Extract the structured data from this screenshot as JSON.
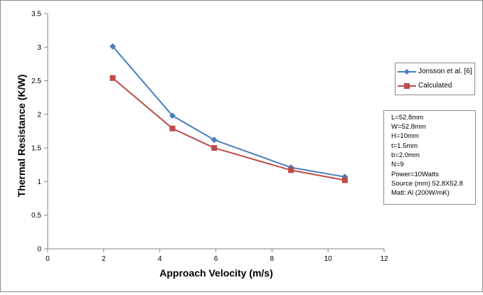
{
  "chart_data": {
    "type": "line",
    "title": "",
    "xlabel": "Approach Velocity (m/s)",
    "ylabel": "Thermal Resistance (K/W)",
    "xlim": [
      0,
      12
    ],
    "ylim": [
      0,
      3.5
    ],
    "xticks": [
      "0",
      "2",
      "4",
      "6",
      "8",
      "10",
      "12"
    ],
    "yticks": [
      "0",
      "0.5",
      "1",
      "1.5",
      "2",
      "2.5",
      "3",
      "3.5"
    ],
    "legend_position": "right",
    "series": [
      {
        "name": "Jonsson et al. [6]",
        "color": "#4a7ebb",
        "marker": "diamond",
        "x": [
          2.32,
          4.45,
          5.94,
          8.68,
          10.6
        ],
        "y": [
          3.01,
          1.98,
          1.62,
          1.21,
          1.07
        ]
      },
      {
        "name": "Calculated",
        "color": "#be4b48",
        "marker": "square",
        "x": [
          2.32,
          4.45,
          5.94,
          8.68,
          10.6
        ],
        "y": [
          2.54,
          1.79,
          1.5,
          1.17,
          1.02
        ]
      }
    ],
    "annotation_lines": [
      "L=52.8mm",
      "W=52.8mm",
      "H=10mm",
      "t=1.5mm",
      "b=2.0mm",
      "N=9",
      "Power=10Watts",
      "Source (mm)  52.8X52.8",
      "Matl: Al (200W/mK)"
    ]
  }
}
